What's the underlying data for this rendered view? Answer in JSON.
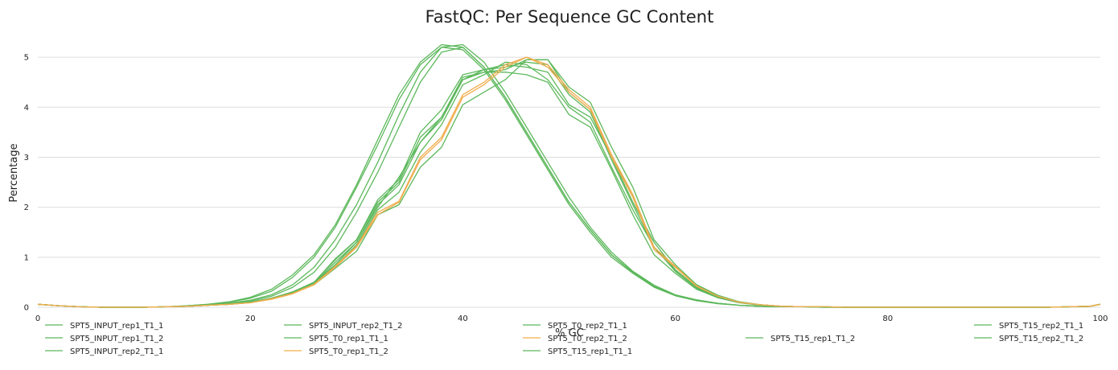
{
  "chart_data": {
    "type": "line",
    "title": "FastQC: Per Sequence GC Content",
    "xlabel": "% GC",
    "ylabel": "Percentage",
    "xlim": [
      0,
      100
    ],
    "ylim": [
      0,
      5.5
    ],
    "xticks": [
      0,
      20,
      40,
      60,
      80,
      100
    ],
    "yticks": [
      0,
      1,
      2,
      3,
      4,
      5
    ],
    "grid": "horizontal",
    "legend_position": "bottom",
    "series": [
      {
        "name": "SPT5_INPUT_rep1_T1_1",
        "color": "#5cb85c",
        "x": [
          0,
          2,
          4,
          6,
          8,
          10,
          12,
          14,
          16,
          18,
          20,
          22,
          24,
          26,
          28,
          30,
          32,
          34,
          36,
          38,
          40,
          42,
          44,
          46,
          48,
          50,
          52,
          54,
          56,
          58,
          60,
          62,
          64,
          66,
          68,
          70,
          72,
          74,
          76,
          78,
          80,
          85,
          90,
          95,
          99,
          100
        ],
        "y": [
          0.06,
          0.03,
          0.01,
          0,
          0,
          0,
          0.01,
          0.02,
          0.04,
          0.07,
          0.12,
          0.22,
          0.4,
          0.7,
          1.2,
          1.9,
          2.7,
          3.6,
          4.5,
          5.1,
          5.2,
          4.8,
          4.2,
          3.5,
          2.8,
          2.1,
          1.55,
          1.05,
          0.7,
          0.42,
          0.24,
          0.14,
          0.08,
          0.04,
          0.02,
          0.01,
          0.01,
          0,
          0,
          0,
          0,
          0,
          0,
          0,
          0.02,
          0.06
        ]
      },
      {
        "name": "SPT5_INPUT_rep1_T1_2",
        "color": "#5cb85c",
        "x": [
          0,
          2,
          4,
          6,
          8,
          10,
          12,
          14,
          16,
          18,
          20,
          22,
          24,
          26,
          28,
          30,
          32,
          34,
          36,
          38,
          40,
          42,
          44,
          46,
          48,
          50,
          52,
          54,
          56,
          58,
          60,
          62,
          64,
          66,
          68,
          70,
          72,
          74,
          76,
          78,
          80,
          85,
          90,
          95,
          99,
          100
        ],
        "y": [
          0.06,
          0.03,
          0.01,
          0,
          0,
          0,
          0.01,
          0.02,
          0.05,
          0.08,
          0.14,
          0.25,
          0.45,
          0.8,
          1.35,
          2.05,
          2.9,
          3.85,
          4.7,
          5.2,
          5.25,
          4.9,
          4.3,
          3.6,
          2.9,
          2.2,
          1.6,
          1.1,
          0.72,
          0.44,
          0.25,
          0.15,
          0.08,
          0.04,
          0.02,
          0.01,
          0.01,
          0,
          0,
          0,
          0,
          0,
          0,
          0,
          0.02,
          0.06
        ]
      },
      {
        "name": "SPT5_INPUT_rep2_T1_1",
        "color": "#5cb85c",
        "x": [
          0,
          2,
          4,
          6,
          8,
          10,
          12,
          14,
          16,
          18,
          20,
          22,
          24,
          26,
          28,
          30,
          32,
          34,
          36,
          38,
          40,
          42,
          44,
          46,
          48,
          50,
          52,
          54,
          56,
          58,
          60,
          62,
          64,
          66,
          68,
          70,
          72,
          74,
          76,
          78,
          80,
          85,
          90,
          95,
          99,
          100
        ],
        "y": [
          0.06,
          0.03,
          0.01,
          0,
          0,
          0,
          0.01,
          0.03,
          0.06,
          0.1,
          0.18,
          0.32,
          0.6,
          1.0,
          1.6,
          2.4,
          3.25,
          4.15,
          4.85,
          5.2,
          5.15,
          4.75,
          4.15,
          3.45,
          2.75,
          2.05,
          1.5,
          1.0,
          0.68,
          0.4,
          0.23,
          0.13,
          0.07,
          0.04,
          0.02,
          0.01,
          0.01,
          0,
          0,
          0,
          0,
          0,
          0,
          0,
          0.02,
          0.06
        ]
      },
      {
        "name": "SPT5_INPUT_rep2_T1_2",
        "color": "#5cb85c",
        "x": [
          0,
          2,
          4,
          6,
          8,
          10,
          12,
          14,
          16,
          18,
          20,
          22,
          24,
          26,
          28,
          30,
          32,
          34,
          36,
          38,
          40,
          42,
          44,
          46,
          48,
          50,
          52,
          54,
          56,
          58,
          60,
          62,
          64,
          66,
          68,
          70,
          72,
          74,
          76,
          78,
          80,
          85,
          90,
          95,
          99,
          100
        ],
        "y": [
          0.06,
          0.03,
          0.01,
          0,
          0,
          0,
          0.01,
          0.03,
          0.06,
          0.11,
          0.2,
          0.36,
          0.65,
          1.05,
          1.65,
          2.45,
          3.35,
          4.25,
          4.9,
          5.25,
          5.2,
          4.8,
          4.2,
          3.5,
          2.8,
          2.1,
          1.55,
          1.05,
          0.7,
          0.42,
          0.24,
          0.14,
          0.08,
          0.04,
          0.02,
          0.01,
          0.01,
          0,
          0,
          0,
          0,
          0,
          0,
          0,
          0.02,
          0.06
        ]
      },
      {
        "name": "SPT5_T0_rep1_T1_1",
        "color": "#5cb85c",
        "x": [
          0,
          2,
          4,
          6,
          8,
          10,
          12,
          14,
          16,
          18,
          20,
          22,
          24,
          26,
          28,
          30,
          32,
          34,
          36,
          38,
          40,
          42,
          44,
          46,
          48,
          50,
          52,
          54,
          56,
          58,
          60,
          62,
          64,
          66,
          68,
          70,
          72,
          74,
          76,
          78,
          80,
          85,
          90,
          95,
          99,
          100
        ],
        "y": [
          0.06,
          0.03,
          0.01,
          0,
          0,
          0,
          0.01,
          0.02,
          0.04,
          0.06,
          0.1,
          0.18,
          0.3,
          0.48,
          0.85,
          1.3,
          2.0,
          2.6,
          3.3,
          3.8,
          4.55,
          4.75,
          4.85,
          4.8,
          4.7,
          4.05,
          3.8,
          3.0,
          2.1,
          1.3,
          0.75,
          0.4,
          0.22,
          0.1,
          0.05,
          0.02,
          0.01,
          0.01,
          0,
          0,
          0,
          0,
          0,
          0,
          0.02,
          0.06
        ]
      },
      {
        "name": "SPT5_T0_rep1_T1_2",
        "color": "#f0ad4e",
        "x": [
          0,
          2,
          4,
          6,
          8,
          10,
          12,
          14,
          16,
          18,
          20,
          22,
          24,
          26,
          28,
          30,
          32,
          34,
          36,
          38,
          40,
          42,
          44,
          46,
          48,
          50,
          52,
          54,
          56,
          58,
          60,
          62,
          64,
          66,
          68,
          70,
          72,
          74,
          76,
          78,
          80,
          85,
          90,
          95,
          99,
          100
        ],
        "y": [
          0.06,
          0.03,
          0.01,
          0,
          0,
          0,
          0.01,
          0.02,
          0.04,
          0.06,
          0.09,
          0.16,
          0.27,
          0.45,
          0.8,
          1.2,
          1.85,
          2.1,
          2.95,
          3.35,
          4.2,
          4.45,
          4.8,
          5.0,
          4.8,
          4.3,
          3.95,
          3.0,
          2.2,
          1.15,
          0.8,
          0.42,
          0.22,
          0.1,
          0.05,
          0.02,
          0.01,
          0.01,
          0,
          0,
          0,
          0,
          0,
          0,
          0.02,
          0.06
        ]
      },
      {
        "name": "SPT5_T0_rep2_T1_1",
        "color": "#5cb85c",
        "x": [
          0,
          2,
          4,
          6,
          8,
          10,
          12,
          14,
          16,
          18,
          20,
          22,
          24,
          26,
          28,
          30,
          32,
          34,
          36,
          38,
          40,
          42,
          44,
          46,
          48,
          50,
          52,
          54,
          56,
          58,
          60,
          62,
          64,
          66,
          68,
          70,
          72,
          74,
          76,
          78,
          80,
          85,
          90,
          95,
          99,
          100
        ],
        "y": [
          0.06,
          0.03,
          0.01,
          0,
          0,
          0,
          0.01,
          0.02,
          0.04,
          0.06,
          0.1,
          0.17,
          0.29,
          0.47,
          0.82,
          1.25,
          1.95,
          2.3,
          3.1,
          3.65,
          4.45,
          4.65,
          4.9,
          4.85,
          4.55,
          4.0,
          3.7,
          2.8,
          1.95,
          1.2,
          0.72,
          0.38,
          0.2,
          0.09,
          0.05,
          0.02,
          0.01,
          0.01,
          0,
          0,
          0,
          0,
          0,
          0,
          0.02,
          0.06
        ]
      },
      {
        "name": "SPT5_T0_rep2_T1_2",
        "color": "#f0ad4e",
        "x": [
          0,
          2,
          4,
          6,
          8,
          10,
          12,
          14,
          16,
          18,
          20,
          22,
          24,
          26,
          28,
          30,
          32,
          34,
          36,
          38,
          40,
          42,
          44,
          46,
          48,
          50,
          52,
          54,
          56,
          58,
          60,
          62,
          64,
          66,
          68,
          70,
          72,
          74,
          76,
          78,
          80,
          85,
          90,
          95,
          99,
          100
        ],
        "y": [
          0.06,
          0.03,
          0.01,
          0,
          0,
          0,
          0.01,
          0.02,
          0.04,
          0.06,
          0.09,
          0.17,
          0.28,
          0.46,
          0.82,
          1.22,
          1.9,
          2.12,
          3.0,
          3.4,
          4.25,
          4.5,
          4.85,
          5.0,
          4.85,
          4.35,
          4.0,
          3.05,
          2.25,
          1.2,
          0.82,
          0.43,
          0.22,
          0.1,
          0.05,
          0.02,
          0.01,
          0.01,
          0,
          0,
          0,
          0,
          0,
          0,
          0.02,
          0.06
        ]
      },
      {
        "name": "SPT5_T15_rep1_T1_1",
        "color": "#5cb85c",
        "x": [
          0,
          2,
          4,
          6,
          8,
          10,
          12,
          14,
          16,
          18,
          20,
          22,
          24,
          26,
          28,
          30,
          32,
          34,
          36,
          38,
          40,
          42,
          44,
          46,
          48,
          50,
          52,
          54,
          56,
          58,
          60,
          62,
          64,
          66,
          68,
          70,
          72,
          74,
          76,
          78,
          80,
          85,
          90,
          95,
          99,
          100
        ],
        "y": [
          0.06,
          0.03,
          0.01,
          0,
          0,
          0,
          0.01,
          0.02,
          0.04,
          0.06,
          0.1,
          0.18,
          0.3,
          0.5,
          0.95,
          1.35,
          2.1,
          2.5,
          3.4,
          3.8,
          4.6,
          4.7,
          4.75,
          4.95,
          4.95,
          4.4,
          4.1,
          3.2,
          2.4,
          1.35,
          0.85,
          0.45,
          0.24,
          0.11,
          0.05,
          0.02,
          0.01,
          0.01,
          0,
          0,
          0,
          0,
          0,
          0,
          0.02,
          0.06
        ]
      },
      {
        "name": "SPT5_T15_rep1_T1_2",
        "color": "#5cb85c",
        "x": [
          0,
          2,
          4,
          6,
          8,
          10,
          12,
          14,
          16,
          18,
          20,
          22,
          24,
          26,
          28,
          30,
          32,
          34,
          36,
          38,
          40,
          42,
          44,
          46,
          48,
          50,
          52,
          54,
          56,
          58,
          60,
          62,
          64,
          66,
          68,
          70,
          72,
          74,
          76,
          78,
          80,
          85,
          90,
          95,
          99,
          100
        ],
        "y": [
          0.06,
          0.03,
          0.01,
          0,
          0,
          0,
          0.01,
          0.02,
          0.04,
          0.06,
          0.1,
          0.18,
          0.31,
          0.5,
          0.97,
          1.35,
          2.15,
          2.55,
          3.5,
          3.95,
          4.65,
          4.75,
          4.8,
          4.9,
          4.85,
          4.25,
          3.9,
          2.95,
          2.05,
          1.2,
          0.74,
          0.4,
          0.21,
          0.1,
          0.05,
          0.02,
          0.01,
          0.01,
          0,
          0,
          0,
          0,
          0,
          0,
          0.02,
          0.06
        ]
      },
      {
        "name": "SPT5_T15_rep2_T1_1",
        "color": "#5cb85c",
        "x": [
          0,
          2,
          4,
          6,
          8,
          10,
          12,
          14,
          16,
          18,
          20,
          22,
          24,
          26,
          28,
          30,
          32,
          34,
          36,
          38,
          40,
          42,
          44,
          46,
          48,
          50,
          52,
          54,
          56,
          58,
          60,
          62,
          64,
          66,
          68,
          70,
          72,
          74,
          76,
          78,
          80,
          85,
          90,
          95,
          99,
          100
        ],
        "y": [
          0.06,
          0.03,
          0.01,
          0,
          0,
          0,
          0.01,
          0.02,
          0.04,
          0.06,
          0.09,
          0.17,
          0.28,
          0.45,
          0.78,
          1.12,
          1.85,
          2.05,
          2.8,
          3.2,
          4.05,
          4.3,
          4.55,
          4.95,
          4.95,
          4.3,
          3.95,
          3.0,
          2.25,
          1.2,
          0.8,
          0.45,
          0.24,
          0.11,
          0.05,
          0.02,
          0.01,
          0.01,
          0,
          0,
          0,
          0,
          0,
          0,
          0.02,
          0.06
        ]
      },
      {
        "name": "SPT5_T15_rep2_T1_2",
        "color": "#5cb85c",
        "x": [
          0,
          2,
          4,
          6,
          8,
          10,
          12,
          14,
          16,
          18,
          20,
          22,
          24,
          26,
          28,
          30,
          32,
          34,
          36,
          38,
          40,
          42,
          44,
          46,
          48,
          50,
          52,
          54,
          56,
          58,
          60,
          62,
          64,
          66,
          68,
          70,
          72,
          74,
          76,
          78,
          80,
          85,
          90,
          95,
          99,
          100
        ],
        "y": [
          0.06,
          0.03,
          0.01,
          0,
          0,
          0,
          0.01,
          0.02,
          0.04,
          0.06,
          0.1,
          0.18,
          0.3,
          0.48,
          0.9,
          1.3,
          2.05,
          2.45,
          3.3,
          3.75,
          4.55,
          4.7,
          4.7,
          4.65,
          4.5,
          3.85,
          3.6,
          2.75,
          1.85,
          1.05,
          0.68,
          0.36,
          0.19,
          0.09,
          0.04,
          0.02,
          0.01,
          0.01,
          0,
          0,
          0,
          0,
          0,
          0,
          0.02,
          0.06
        ]
      }
    ]
  }
}
